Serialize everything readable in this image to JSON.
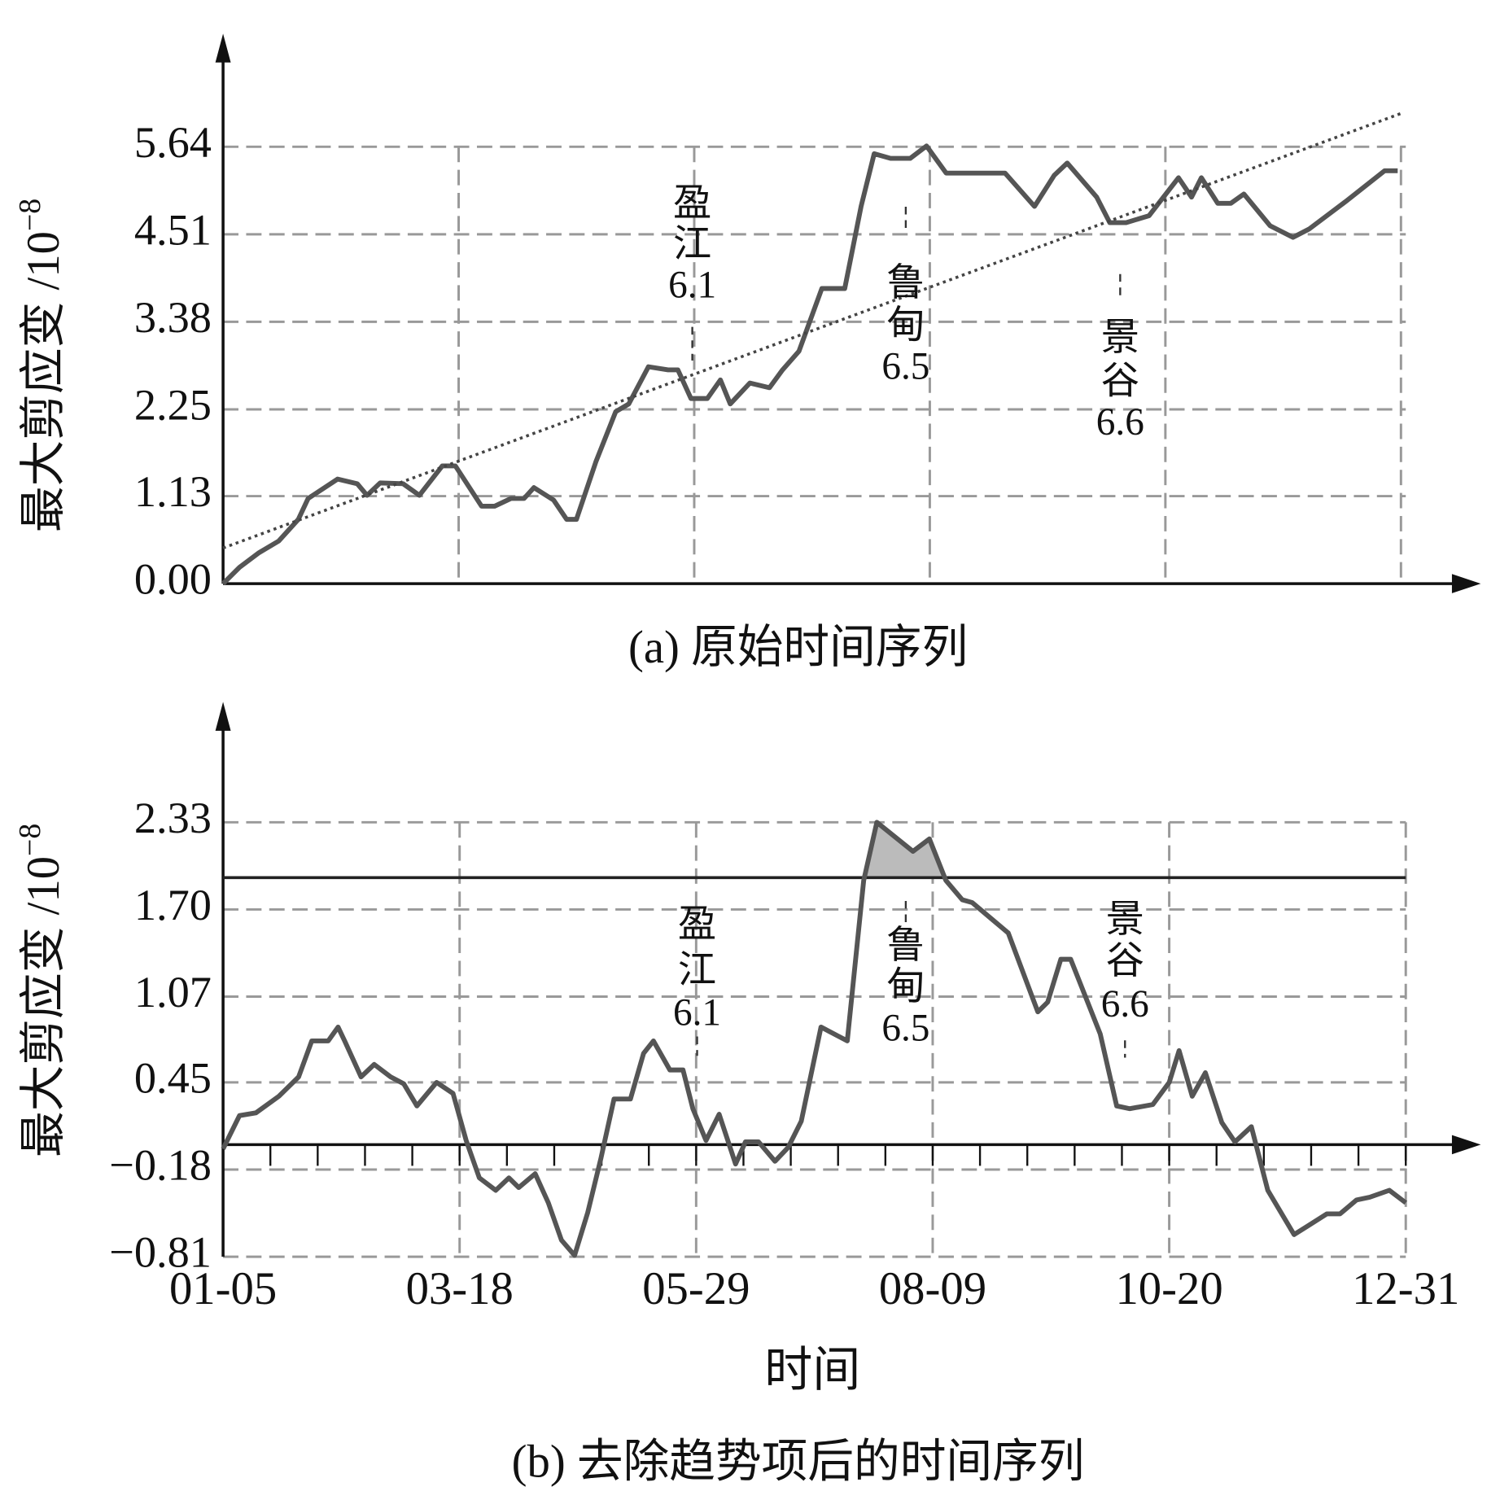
{
  "chart_data": [
    {
      "type": "line",
      "caption": "(a) 原始时间序列",
      "ylabel": "最大剪应变 /10",
      "ylabel_exponent": "−8",
      "xlim": [
        0,
        360
      ],
      "xticks": [
        0,
        72,
        144,
        216,
        288,
        360
      ],
      "ylim": [
        0,
        7.1
      ],
      "yticks": [
        {
          "value": 0,
          "label": "0.00"
        },
        1.13,
        2.25,
        3.38,
        4.51,
        5.64
      ],
      "grid": true,
      "series": [
        {
          "color": "#555555",
          "x": [
            0,
            5,
            11,
            17,
            23,
            26,
            35,
            41,
            44,
            48,
            55,
            60,
            67,
            71,
            79,
            83,
            88,
            92,
            95,
            101,
            105,
            108,
            114,
            120,
            124,
            130,
            136,
            139,
            143,
            148,
            152,
            155,
            161,
            167,
            171,
            176,
            183,
            190,
            195,
            199,
            204,
            210,
            215,
            221,
            226,
            239,
            248,
            254,
            258,
            267,
            271,
            276,
            283,
            292,
            296,
            299,
            304,
            308,
            312,
            320,
            327,
            332,
            343,
            355,
            359
          ],
          "values": [
            0,
            0.21,
            0.4,
            0.55,
            0.83,
            1.1,
            1.35,
            1.29,
            1.14,
            1.3,
            1.29,
            1.14,
            1.52,
            1.52,
            1.0,
            1.0,
            1.1,
            1.1,
            1.24,
            1.08,
            0.83,
            0.83,
            1.58,
            2.22,
            2.32,
            2.8,
            2.76,
            2.76,
            2.39,
            2.39,
            2.63,
            2.32,
            2.59,
            2.53,
            2.76,
            3.0,
            3.81,
            3.81,
            4.87,
            5.55,
            5.49,
            5.49,
            5.65,
            5.3,
            5.3,
            5.3,
            4.87,
            5.27,
            5.43,
            4.99,
            4.66,
            4.66,
            4.75,
            5.24,
            4.99,
            5.24,
            4.91,
            4.91,
            5.03,
            4.62,
            4.47,
            4.58,
            4.93,
            5.33,
            5.33
          ]
        },
        {
          "color": "#444444",
          "style": "dotted",
          "x": [
            0,
            360
          ],
          "values": [
            0.46,
            6.07
          ]
        }
      ],
      "annotations": [
        {
          "text": [
            "盈",
            "江",
            "6.1"
          ]
        },
        {
          "text": [
            "鲁",
            "甸",
            "6.5"
          ]
        },
        {
          "text": [
            "景",
            "谷",
            "6.6"
          ]
        }
      ]
    },
    {
      "type": "line",
      "caption": "(b) 去除趋势项后的时间序列",
      "xlabel": "时间",
      "ylabel": "最大剪应变 /10",
      "ylabel_exponent": "−8",
      "xlim": [
        0,
        360
      ],
      "xticks": [
        {
          "value": 0,
          "label": "01-05"
        },
        {
          "value": 72,
          "label": "03-18"
        },
        {
          "value": 144,
          "label": "05-29"
        },
        {
          "value": 216,
          "label": "08-09"
        },
        {
          "value": 288,
          "label": "10-20"
        },
        {
          "value": 360,
          "label": "12-31"
        }
      ],
      "ylim": [
        -0.81,
        3.2
      ],
      "yticks": [
        {
          "value": -0.81,
          "label": "−0.81"
        },
        {
          "value": -0.18,
          "label": "−0.18"
        },
        0.45,
        1.07,
        {
          "value": 1.7,
          "label": "1.70"
        },
        2.33
      ],
      "grid": true,
      "threshold": 1.93,
      "series": [
        {
          "color": "#555555",
          "x": [
            0,
            5,
            10,
            17,
            23,
            27,
            32,
            35,
            37,
            42,
            46,
            51,
            55,
            59,
            65,
            70,
            74,
            78,
            83,
            87,
            90,
            95,
            99,
            103,
            107,
            111,
            115,
            119,
            124,
            128,
            131,
            136,
            140,
            143,
            147,
            151,
            156,
            159,
            163,
            168,
            172,
            176,
            182,
            190,
            195,
            199,
            210,
            215,
            220,
            225,
            228,
            234,
            239,
            248,
            251,
            255,
            258,
            267,
            272,
            276,
            283,
            288,
            291,
            295,
            299,
            304,
            308,
            313,
            318,
            326,
            330,
            336,
            340,
            345,
            349,
            355,
            360
          ],
          "values": [
            -0.03,
            0.21,
            0.23,
            0.35,
            0.49,
            0.75,
            0.75,
            0.85,
            0.75,
            0.49,
            0.58,
            0.49,
            0.44,
            0.28,
            0.45,
            0.37,
            0.03,
            -0.24,
            -0.33,
            -0.24,
            -0.31,
            -0.21,
            -0.42,
            -0.69,
            -0.8,
            -0.49,
            -0.1,
            0.33,
            0.33,
            0.66,
            0.75,
            0.54,
            0.54,
            0.26,
            0.03,
            0.22,
            -0.14,
            0.02,
            0.02,
            -0.12,
            -0.02,
            0.17,
            0.85,
            0.75,
            1.91,
            2.33,
            2.12,
            2.21,
            1.91,
            1.77,
            1.75,
            1.63,
            1.53,
            0.96,
            1.03,
            1.34,
            1.34,
            0.8,
            0.28,
            0.26,
            0.29,
            0.45,
            0.68,
            0.35,
            0.52,
            0.16,
            0.02,
            0.13,
            -0.33,
            -0.65,
            -0.59,
            -0.5,
            -0.5,
            -0.4,
            -0.38,
            -0.33,
            -0.42
          ]
        }
      ],
      "annotations": [
        {
          "text": [
            "盈",
            "江",
            "6.1"
          ]
        },
        {
          "text": [
            "鲁",
            "甸",
            "6.5"
          ]
        },
        {
          "text": [
            "景",
            "谷",
            "6.6"
          ]
        }
      ]
    }
  ]
}
